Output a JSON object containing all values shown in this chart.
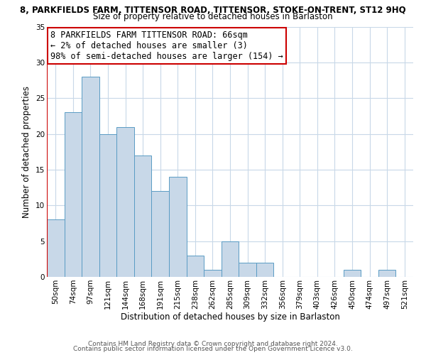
{
  "title_main": "8, PARKFIELDS FARM, TITTENSOR ROAD, TITTENSOR, STOKE-ON-TRENT, ST12 9HQ",
  "title_sub": "Size of property relative to detached houses in Barlaston",
  "xlabel": "Distribution of detached houses by size in Barlaston",
  "ylabel": "Number of detached properties",
  "bar_labels": [
    "50sqm",
    "74sqm",
    "97sqm",
    "121sqm",
    "144sqm",
    "168sqm",
    "191sqm",
    "215sqm",
    "238sqm",
    "262sqm",
    "285sqm",
    "309sqm",
    "332sqm",
    "356sqm",
    "379sqm",
    "403sqm",
    "426sqm",
    "450sqm",
    "474sqm",
    "497sqm",
    "521sqm"
  ],
  "bar_values": [
    8,
    23,
    28,
    20,
    21,
    17,
    12,
    14,
    3,
    1,
    5,
    2,
    2,
    0,
    0,
    0,
    0,
    1,
    0,
    1,
    0
  ],
  "bar_color": "#c8d8e8",
  "bar_edge_color": "#5a9cc4",
  "highlight_color": "#cc0000",
  "annotation_line1": "8 PARKFIELDS FARM TITTENSOR ROAD: 66sqm",
  "annotation_line2": "← 2% of detached houses are smaller (3)",
  "annotation_line3": "98% of semi-detached houses are larger (154) →",
  "annotation_box_facecolor": "#ffffff",
  "annotation_box_edgecolor": "#cc0000",
  "ylim": [
    0,
    35
  ],
  "yticks": [
    0,
    5,
    10,
    15,
    20,
    25,
    30,
    35
  ],
  "footer_line1": "Contains HM Land Registry data © Crown copyright and database right 2024.",
  "footer_line2": "Contains public sector information licensed under the Open Government Licence v3.0.",
  "background_color": "#ffffff",
  "grid_color": "#c8d8e8",
  "title_fontsize": 8.5,
  "subtitle_fontsize": 8.5,
  "annotation_fontsize": 8.5,
  "axis_label_fontsize": 8.5,
  "tick_fontsize": 7.5,
  "footer_fontsize": 6.5
}
